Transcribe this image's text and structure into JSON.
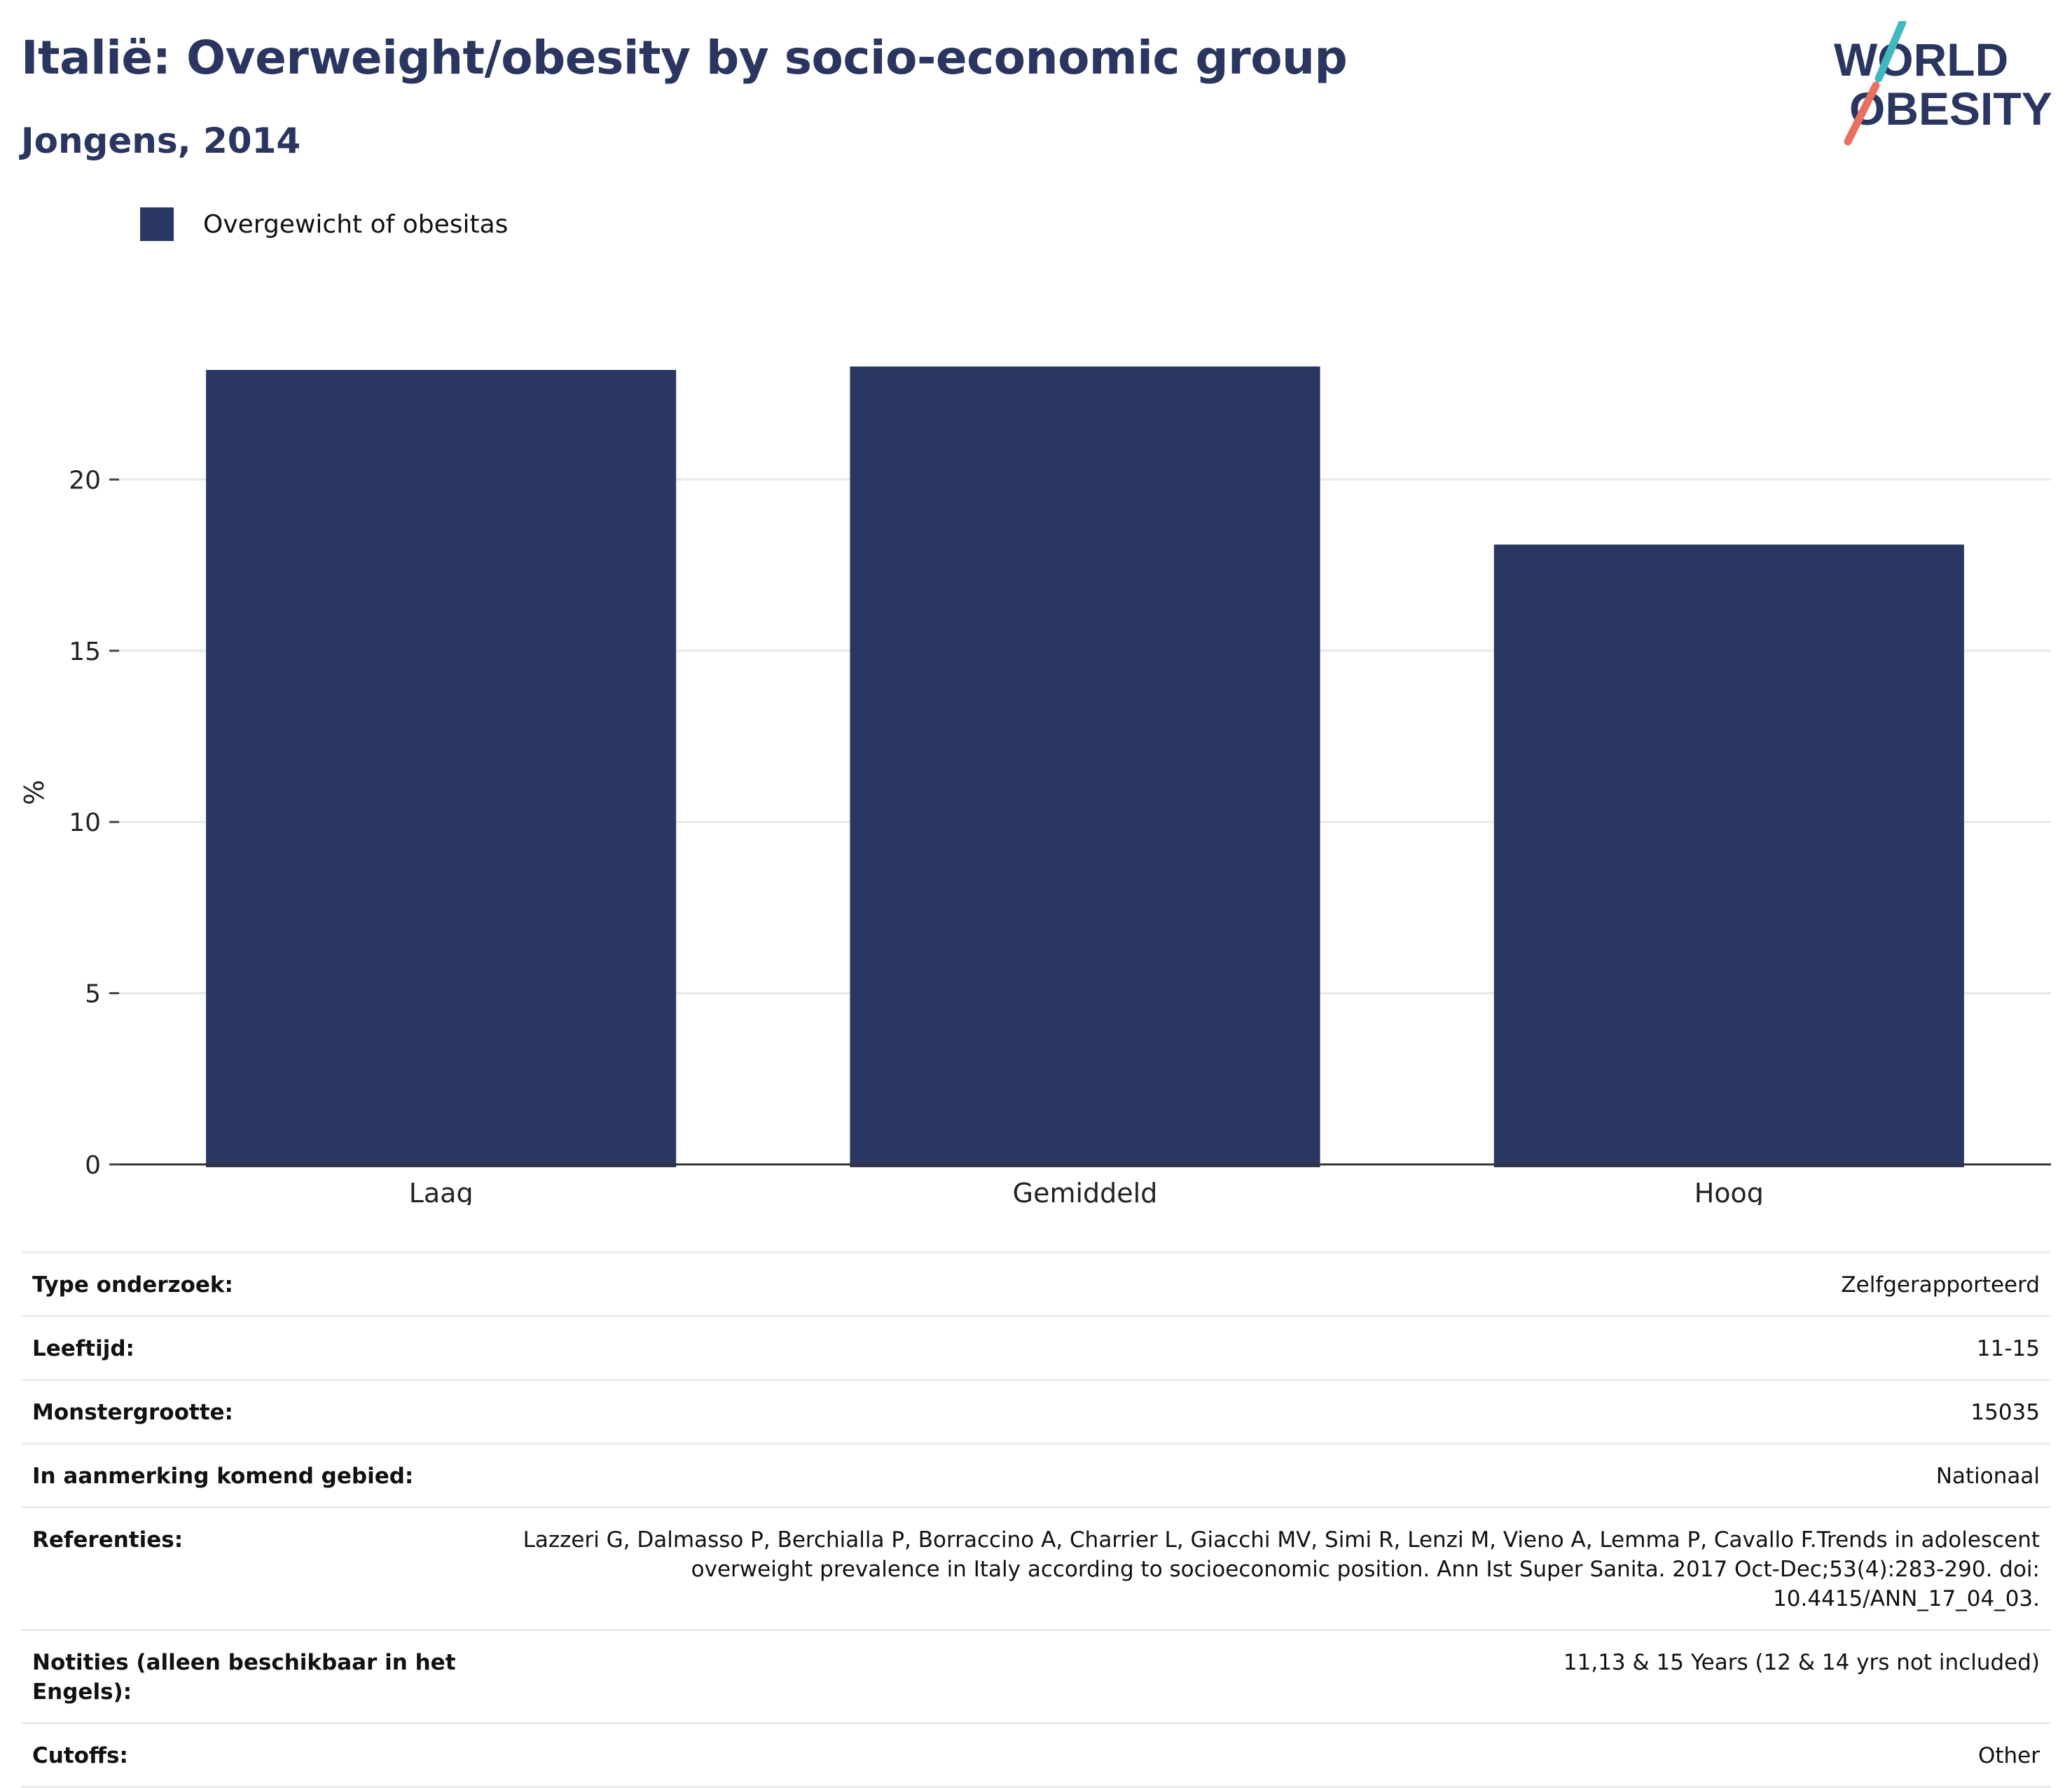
{
  "header": {
    "title": "Italië: Overweight/obesity by socio-economic group",
    "subtitle": "Jongens, 2014"
  },
  "logo": {
    "line1": "WORLD",
    "line2": "OBESITY",
    "colors": {
      "text": "#2a3560",
      "slash_top": "#3fb8c0",
      "slash_bottom": "#e8705f"
    }
  },
  "legend": {
    "label": "Overgewicht of obesitas",
    "color": "#2b3763"
  },
  "chart_data": {
    "type": "bar",
    "categories": [
      "Laag",
      "Gemiddeld",
      "Hoog"
    ],
    "series": [
      {
        "name": "Overgewicht of obesitas",
        "values": [
          23.2,
          23.3,
          18.1
        ],
        "color": "#2b3763"
      }
    ],
    "ylabel": "%",
    "xlabel": "",
    "ylim": [
      0,
      25
    ],
    "yticks": [
      0,
      5,
      10,
      15,
      20
    ],
    "grid": true,
    "legend_position": "top-left"
  },
  "info": [
    {
      "key": "Type onderzoek:",
      "value": "Zelfgerapporteerd"
    },
    {
      "key": "Leeftijd:",
      "value": "11-15"
    },
    {
      "key": "Monstergrootte:",
      "value": "15035"
    },
    {
      "key": "In aanmerking komend gebied:",
      "value": "Nationaal"
    },
    {
      "key": "Referenties:",
      "value": "Lazzeri G, Dalmasso P, Berchialla P, Borraccino A, Charrier L, Giacchi MV, Simi R, Lenzi M, Vieno A, Lemma P, Cavallo F.Trends in adolescent overweight prevalence in Italy according to socioeconomic position. Ann Ist Super Sanita. 2017 Oct-Dec;53(4):283-290. doi: 10.4415/ANN_17_04_03."
    },
    {
      "key": "Notities (alleen beschikbaar in het Engels):",
      "value": "11,13 & 15 Years (12 & 14 yrs not included)"
    },
    {
      "key": "Cutoffs:",
      "value": "Other"
    }
  ]
}
